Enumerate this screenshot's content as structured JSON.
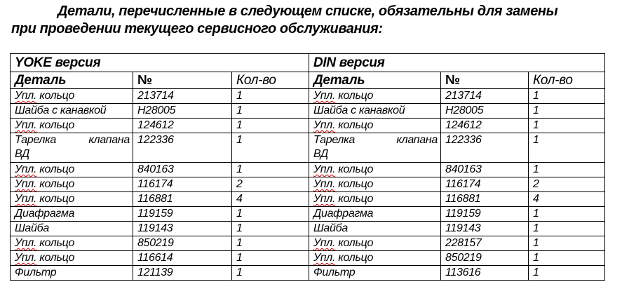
{
  "title_line1": "Детали, перечисленные в следующем списке, обязательны для замены",
  "title_line2": "при проведении текущего сервисного обслуживания:",
  "groups": [
    "YOKE версия",
    "DIN версия"
  ],
  "columns": [
    "Деталь",
    "№",
    "Кол-во"
  ],
  "rows": [
    {
      "yoke": [
        "Упл. кольцо",
        "213714",
        "1"
      ],
      "din": [
        "Упл. кольцо",
        "213714",
        "1"
      ]
    },
    {
      "yoke": [
        "Шайба с канавкой",
        "H28005",
        "1"
      ],
      "din": [
        "Шайба с канавкой",
        "H28005",
        "1"
      ]
    },
    {
      "yoke": [
        "Упл. кольцо",
        "124612",
        "1"
      ],
      "din": [
        "Упл. кольцо",
        "124612",
        "1"
      ]
    },
    {
      "yoke": [
        "Тарелка клапана ВД",
        "122336",
        "1"
      ],
      "din": [
        "Тарелка клапана ВД",
        "122336",
        "1"
      ]
    },
    {
      "yoke": [
        "Упл. кольцо",
        "840163",
        "1"
      ],
      "din": [
        "Упл. кольцо",
        "840163",
        "1"
      ]
    },
    {
      "yoke": [
        "Упл. кольцо",
        "116174",
        "2"
      ],
      "din": [
        "Упл. кольцо",
        "116174",
        "2"
      ]
    },
    {
      "yoke": [
        "Упл. кольцо",
        "116881",
        "4"
      ],
      "din": [
        "Упл. кольцо",
        "116881",
        "4"
      ]
    },
    {
      "yoke": [
        "Диафрагма",
        "119159",
        "1"
      ],
      "din": [
        "Диафрагма",
        "119159",
        "1"
      ]
    },
    {
      "yoke": [
        "Шайба",
        "119143",
        "1"
      ],
      "din": [
        "Шайба",
        "119143",
        "1"
      ]
    },
    {
      "yoke": [
        "Упл. кольцо",
        "850219",
        "1"
      ],
      "din": [
        "Упл. кольцо",
        "228157",
        "1"
      ]
    },
    {
      "yoke": [
        "Упл. кольцо",
        "116614",
        "1"
      ],
      "din": [
        "Упл. кольцо",
        "850219",
        "1"
      ]
    },
    {
      "yoke": [
        "Фильтр",
        "121139",
        "1"
      ],
      "din": [
        "Фильтр",
        "113616",
        "1"
      ]
    }
  ],
  "colors": {
    "spellcheck_underline": "#d00000",
    "border": "#000000"
  }
}
